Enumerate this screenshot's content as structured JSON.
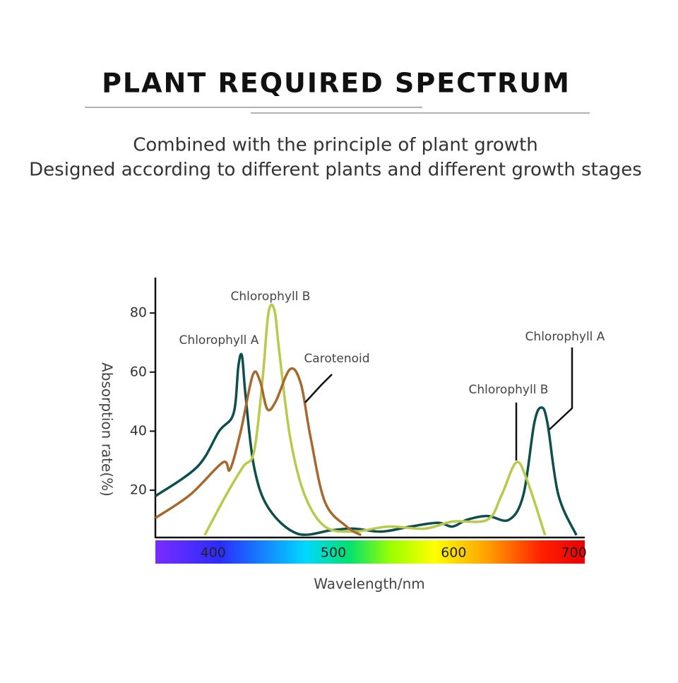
{
  "header": {
    "title": "PLANT REQUIRED SPECTRUM",
    "subtitle": [
      "Combined with the principle of plant growth",
      "Designed according to different plants and different growth stages"
    ]
  },
  "chart_data": {
    "type": "line",
    "x_label": "Wavelength/nm",
    "y_label": "Absorption rate(%)",
    "xlim": [
      352,
      709
    ],
    "xticks": [
      400,
      500,
      600,
      700
    ],
    "ylim": [
      4,
      92
    ],
    "yticks": [
      20,
      40,
      60,
      80
    ],
    "series": [
      {
        "name": "Chlorophyll A",
        "color": "#0e4f4c",
        "x": [
          352,
          387,
          405,
          417,
          421,
          424,
          427,
          434,
          446,
          470,
          499,
          517,
          540,
          564,
          587,
          599,
          611,
          628,
          646,
          658,
          667,
          673,
          678,
          687,
          702
        ],
        "values": [
          18,
          28,
          40,
          46,
          62,
          65.5,
          52,
          28,
          14,
          5.3,
          6.5,
          7,
          6,
          7.7,
          9,
          7.7,
          10,
          11.3,
          10,
          18.5,
          42.7,
          48,
          42.7,
          18.5,
          4.8
        ]
      },
      {
        "name": "Chlorophyll B",
        "color": "#b8c94c",
        "x": [
          393,
          411,
          425,
          434,
          441,
          446,
          451,
          455,
          464,
          476,
          493,
          517,
          546,
          576,
          599,
          628,
          640,
          652,
          661,
          676
        ],
        "values": [
          4.8,
          18.5,
          28,
          33,
          57,
          80,
          81,
          67,
          38,
          18.5,
          7.7,
          6,
          7.7,
          7,
          9.4,
          10,
          18.5,
          29.4,
          23.4,
          4.8
        ]
      },
      {
        "name": "Carotenoid",
        "color": "#a5682e",
        "x": [
          352,
          381,
          408,
          414,
          423,
          433,
          439,
          445,
          452,
          464,
          473,
          481,
          493,
          511,
          523
        ],
        "values": [
          10.6,
          18.5,
          29.4,
          27,
          40,
          59,
          57,
          47.5,
          50,
          61,
          56,
          38,
          16,
          7.7,
          4.8
        ]
      }
    ],
    "annotations": [
      "Chlorophyll B",
      "Chlorophyll A",
      "Carotenoid",
      "Chlorophyll B",
      "Chlorophyll A"
    ]
  }
}
